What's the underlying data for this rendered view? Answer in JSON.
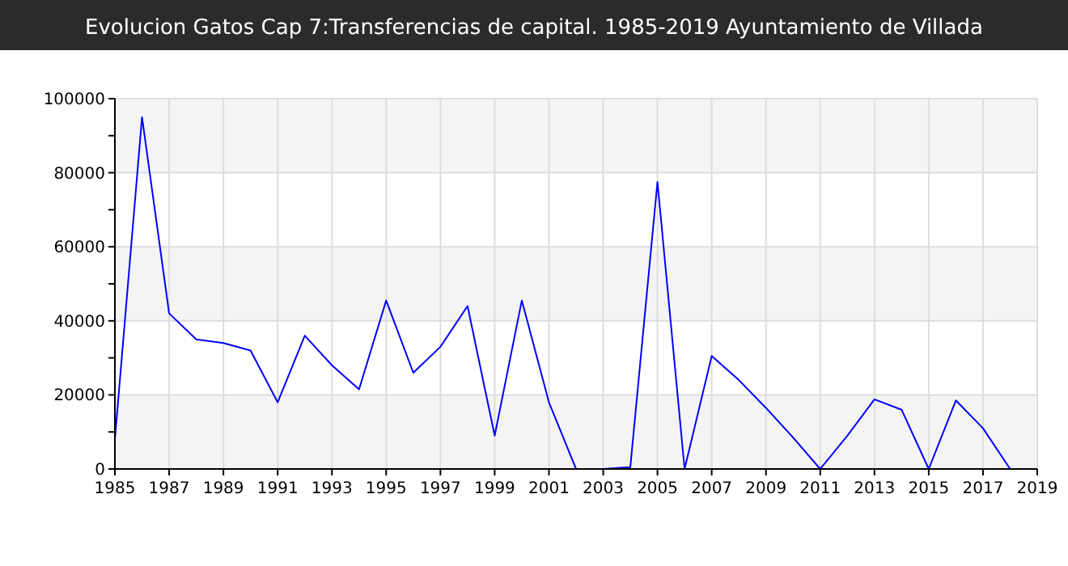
{
  "chart_data": {
    "type": "line",
    "title": "Evolucion Gatos Cap 7:Transferencias de capital. 1985-2019 Ayuntamiento de Villada",
    "x": [
      1985,
      1986,
      1987,
      1988,
      1989,
      1990,
      1991,
      1992,
      1993,
      1994,
      1995,
      1996,
      1997,
      1998,
      1999,
      2000,
      2001,
      2002,
      2003,
      2004,
      2005,
      2006,
      2007,
      2008,
      2009,
      2010,
      2011,
      2012,
      2013,
      2014,
      2015,
      2016,
      2017,
      2018
    ],
    "series": [
      {
        "color": "#0000ff",
        "values": [
          8000,
          95000,
          42000,
          35000,
          34000,
          32000,
          18000,
          36000,
          28000,
          21500,
          45500,
          26000,
          33000,
          44000,
          9000,
          45500,
          18000,
          0,
          0,
          500,
          77500,
          0,
          30500,
          24000,
          16500,
          8500,
          0,
          9000,
          18800,
          16000,
          0,
          18500,
          11000,
          0
        ]
      }
    ],
    "xlim": [
      1985,
      2019
    ],
    "xticks": [
      1985,
      1987,
      1989,
      1991,
      1993,
      1995,
      1997,
      1999,
      2001,
      2003,
      2005,
      2007,
      2009,
      2011,
      2013,
      2015,
      2017,
      2019
    ],
    "ylim": [
      0,
      100000
    ],
    "yticks": [
      0,
      {
        "value": 10000,
        "label": null
      },
      20000,
      {
        "value": 30000,
        "label": null
      },
      40000,
      {
        "value": 50000,
        "label": null
      },
      60000,
      {
        "value": 70000,
        "label": null
      },
      80000,
      {
        "value": 90000,
        "label": null
      },
      100000
    ],
    "grid": true,
    "marker": "none",
    "line_style": "solid"
  }
}
